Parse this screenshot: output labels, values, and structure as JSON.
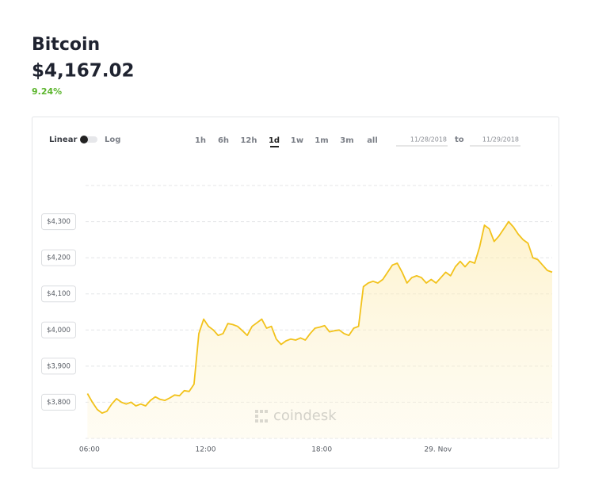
{
  "header": {
    "title": "Bitcoin",
    "price": "$4,167.02",
    "change": "9.24%"
  },
  "controls": {
    "scale": [
      "Linear",
      "Log"
    ],
    "ranges": [
      "1h",
      "6h",
      "12h",
      "1d",
      "1w",
      "1m",
      "3m",
      "all"
    ],
    "from": "11/28/2018",
    "to_label": "to",
    "to": "11/29/2018"
  },
  "chart_data": {
    "type": "line",
    "watermark": "coindesk",
    "color": "#f2c21b",
    "grid": true,
    "x": [
      5.9,
      6.15,
      6.4,
      6.65,
      6.9,
      7.15,
      7.4,
      7.65,
      7.9,
      8.15,
      8.4,
      8.65,
      8.9,
      9.15,
      9.4,
      9.65,
      9.9,
      10.15,
      10.4,
      10.65,
      10.9,
      11.15,
      11.4,
      11.65,
      11.9,
      12.15,
      12.4,
      12.65,
      12.9,
      13.15,
      13.4,
      13.65,
      13.9,
      14.15,
      14.4,
      14.65,
      14.9,
      15.15,
      15.4,
      15.65,
      15.9,
      16.15,
      16.4,
      16.65,
      16.9,
      17.15,
      17.4,
      17.65,
      17.9,
      18.15,
      18.4,
      18.65,
      18.9,
      19.15,
      19.4,
      19.65,
      19.9,
      20.15,
      20.4,
      20.65,
      20.9,
      21.15,
      21.4,
      21.65,
      21.9,
      22.15,
      22.4,
      22.65,
      22.9,
      23.15,
      23.4,
      23.65,
      23.9,
      24.15,
      24.4,
      24.65,
      24.9,
      25.15,
      25.4,
      25.65,
      25.9,
      26.15,
      26.4,
      26.65,
      26.9,
      27.15,
      27.4,
      27.65,
      27.9,
      28.15,
      28.4,
      28.65,
      28.9,
      29.15,
      29.4,
      29.65,
      29.9
    ],
    "values": [
      3824,
      3800,
      3780,
      3770,
      3775,
      3795,
      3810,
      3800,
      3795,
      3800,
      3790,
      3795,
      3790,
      3805,
      3815,
      3808,
      3805,
      3812,
      3820,
      3818,
      3832,
      3830,
      3850,
      3990,
      4030,
      4010,
      4000,
      3985,
      3990,
      4018,
      4015,
      4010,
      3998,
      3985,
      4010,
      4020,
      4030,
      4005,
      4010,
      3975,
      3960,
      3970,
      3975,
      3972,
      3978,
      3972,
      3990,
      4005,
      4008,
      4012,
      3995,
      3998,
      4000,
      3990,
      3985,
      4005,
      4010,
      4120,
      4130,
      4135,
      4130,
      4140,
      4160,
      4180,
      4185,
      4160,
      4130,
      4145,
      4150,
      4145,
      4130,
      4140,
      4130,
      4145,
      4160,
      4150,
      4175,
      4190,
      4175,
      4190,
      4185,
      4230,
      4290,
      4280,
      4245,
      4260,
      4280,
      4300,
      4285,
      4265,
      4250,
      4240,
      4200,
      4195,
      4180,
      4165,
      4160
    ],
    "xlim": [
      5.8,
      29.9
    ],
    "xticks": [
      {
        "value": 6,
        "label": "06:00"
      },
      {
        "value": 12,
        "label": "12:00"
      },
      {
        "value": 18,
        "label": "18:00"
      },
      {
        "value": 24,
        "label": "29. Nov"
      }
    ],
    "ylim": [
      3700,
      4400
    ],
    "yticks": [
      {
        "value": 3800,
        "label": "$3,800"
      },
      {
        "value": 3900,
        "label": "$3,900"
      },
      {
        "value": 4000,
        "label": "$4,000"
      },
      {
        "value": 4100,
        "label": "$4,100"
      },
      {
        "value": 4200,
        "label": "$4,200"
      },
      {
        "value": 4300,
        "label": "$4,300"
      }
    ]
  }
}
